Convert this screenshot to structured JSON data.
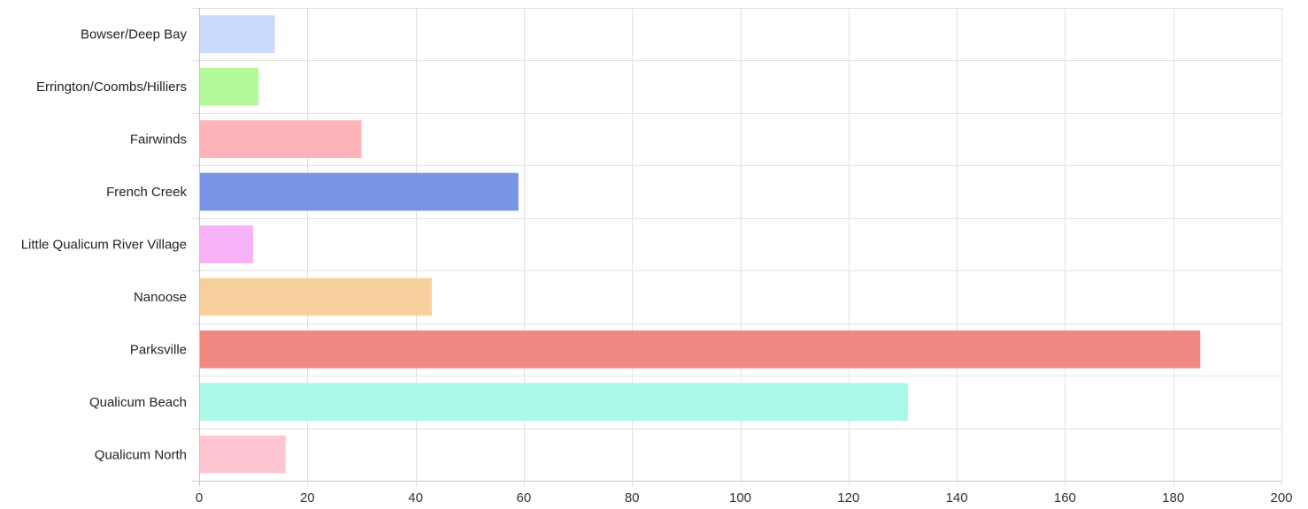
{
  "chart_data": {
    "type": "bar",
    "orientation": "horizontal",
    "categories": [
      "Bowser/Deep Bay",
      "Errington/Coombs/Hilliers",
      "Fairwinds",
      "French Creek",
      "Little Qualicum River Village",
      "Nanoose",
      "Parksville",
      "Qualicum Beach",
      "Qualicum North"
    ],
    "values": [
      14,
      11,
      30,
      59,
      10,
      43,
      185,
      131,
      16
    ],
    "colors": [
      "#cadafc",
      "#b5f99a",
      "#feb4b8",
      "#7994e4",
      "#f8b2f6",
      "#f7d09d",
      "#f08981",
      "#aaf8e7",
      "#fec6d3"
    ],
    "xlim": [
      0,
      200
    ],
    "xticks": [
      "0",
      "20",
      "40",
      "60",
      "80",
      "100",
      "120",
      "140",
      "160",
      "180",
      "200"
    ],
    "grid": true,
    "legend": "none",
    "title": "",
    "xlabel": "",
    "ylabel": ""
  }
}
